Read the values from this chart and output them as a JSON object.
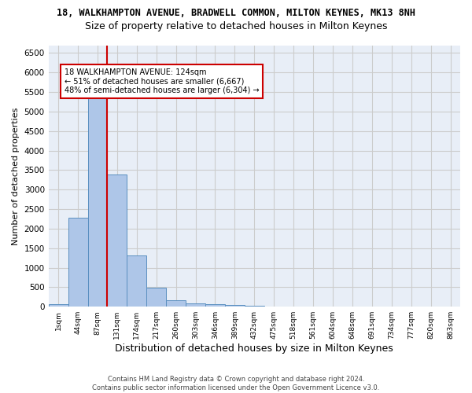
{
  "title_line1": "18, WALKHAMPTON AVENUE, BRADWELL COMMON, MILTON KEYNES, MK13 8NH",
  "title_line2": "Size of property relative to detached houses in Milton Keynes",
  "xlabel": "Distribution of detached houses by size in Milton Keynes",
  "ylabel": "Number of detached properties",
  "footer_line1": "Contains HM Land Registry data © Crown copyright and database right 2024.",
  "footer_line2": "Contains public sector information licensed under the Open Government Licence v3.0.",
  "bar_labels": [
    "1sqm",
    "44sqm",
    "87sqm",
    "131sqm",
    "174sqm",
    "217sqm",
    "260sqm",
    "303sqm",
    "346sqm",
    "389sqm",
    "432sqm",
    "475sqm",
    "518sqm",
    "561sqm",
    "604sqm",
    "648sqm",
    "691sqm",
    "734sqm",
    "777sqm",
    "820sqm",
    "863sqm"
  ],
  "bar_values": [
    70,
    2280,
    5430,
    3380,
    1310,
    480,
    165,
    90,
    55,
    35,
    20,
    10,
    5,
    3,
    2,
    1,
    0,
    0,
    0,
    0,
    0
  ],
  "bar_color": "#aec6e8",
  "bar_edge_color": "#5a8fc0",
  "vline_x_index": 2,
  "vline_color": "#cc0000",
  "annotation_text": "18 WALKHAMPTON AVENUE: 124sqm\n← 51% of detached houses are smaller (6,667)\n48% of semi-detached houses are larger (6,304) →",
  "annotation_box_color": "#cc0000",
  "ylim": [
    0,
    6700
  ],
  "yticks": [
    0,
    500,
    1000,
    1500,
    2000,
    2500,
    3000,
    3500,
    4000,
    4500,
    5000,
    5500,
    6000,
    6500
  ],
  "grid_color": "#cccccc",
  "bg_color": "#e8eef7",
  "title1_fontsize": 8.5,
  "title2_fontsize": 9,
  "xlabel_fontsize": 9,
  "ylabel_fontsize": 8,
  "footer_fontsize": 6,
  "annotation_fontsize": 7
}
